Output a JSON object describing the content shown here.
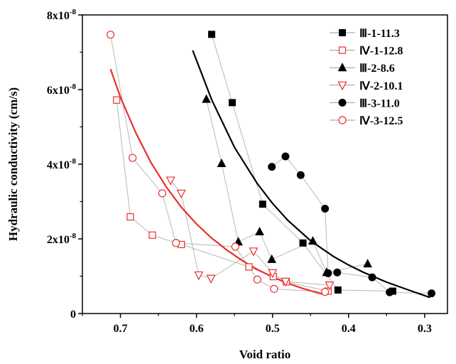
{
  "chart_data": {
    "type": "scatter",
    "xlabel": "Void ratio",
    "ylabel": "Hydraulic conductivity (cm/s)",
    "xlim": [
      0.75,
      0.27
    ],
    "x_reversed": true,
    "ylim": [
      0,
      8e-08
    ],
    "x_ticks": [
      {
        "value": 0.7,
        "label": "0.7"
      },
      {
        "value": 0.6,
        "label": "0.6"
      },
      {
        "value": 0.5,
        "label": "0.5"
      },
      {
        "value": 0.4,
        "label": "0.4"
      },
      {
        "value": 0.3,
        "label": "0.3"
      }
    ],
    "y_ticks": [
      {
        "value": 0,
        "base": "0",
        "exp": ""
      },
      {
        "value": 2e-08,
        "base": "2x10",
        "exp": "-8"
      },
      {
        "value": 4e-08,
        "base": "4x10",
        "exp": "-8"
      },
      {
        "value": 6e-08,
        "base": "6x10",
        "exp": "-8"
      },
      {
        "value": 8e-08,
        "base": "8x10",
        "exp": "-8"
      }
    ],
    "legend_position": "top-right",
    "grid": false,
    "series": [
      {
        "name": "Ⅲ-1-11.3",
        "marker": "square",
        "fill": true,
        "color": "#000000",
        "x": [
          0.58,
          0.553,
          0.513,
          0.46,
          0.414,
          0.342
        ],
        "y": [
          7.48e-08,
          5.65e-08,
          2.93e-08,
          1.89e-08,
          6.3e-09,
          6e-09
        ]
      },
      {
        "name": "Ⅳ-1-12.8",
        "marker": "square",
        "fill": false,
        "color": "#e8302c",
        "x": [
          0.705,
          0.687,
          0.658,
          0.62,
          0.531,
          0.499,
          0.482,
          0.427
        ],
        "y": [
          5.72e-08,
          2.59e-08,
          2.1e-08,
          1.85e-08,
          1.25e-08,
          9.9e-09,
          8.5e-09,
          6e-09
        ]
      },
      {
        "name": "Ⅲ-2-8.6",
        "marker": "triangle-up",
        "fill": true,
        "color": "#000000",
        "x": [
          0.587,
          0.567,
          0.545,
          0.517,
          0.501,
          0.447,
          0.429,
          0.375
        ],
        "y": [
          5.74e-08,
          4.02e-08,
          1.92e-08,
          2.19e-08,
          1.45e-08,
          1.94e-08,
          1.1e-08,
          1.33e-08
        ]
      },
      {
        "name": "Ⅳ-2-10.1",
        "marker": "triangle-down",
        "fill": false,
        "color": "#e8302c",
        "x": [
          0.634,
          0.62,
          0.597,
          0.581,
          0.525,
          0.5,
          0.483,
          0.425
        ],
        "y": [
          3.57e-08,
          3.22e-08,
          1.03e-08,
          9.4e-09,
          1.67e-08,
          1.09e-08,
          8.6e-09,
          7.6e-09
        ]
      },
      {
        "name": "Ⅲ-3-11.0",
        "marker": "circle",
        "fill": true,
        "color": "#000000",
        "x": [
          0.501,
          0.483,
          0.463,
          0.431,
          0.427,
          0.415,
          0.369,
          0.346,
          0.291
        ],
        "y": [
          3.93e-08,
          4.21e-08,
          3.71e-08,
          2.81e-08,
          1.08e-08,
          1.1e-08,
          9.7e-09,
          5.7e-09,
          5.4e-09
        ]
      },
      {
        "name": "Ⅳ-3-12.5",
        "marker": "circle",
        "fill": false,
        "color": "#e8302c",
        "x": [
          0.713,
          0.684,
          0.645,
          0.627,
          0.549,
          0.52,
          0.498,
          0.431
        ],
        "y": [
          7.47e-08,
          4.17e-08,
          3.22e-08,
          1.89e-08,
          1.79e-08,
          9.1e-09,
          6.6e-09,
          5.8e-09
        ]
      }
    ],
    "fit_curves": [
      {
        "color": "#000000",
        "x": [
          0.605,
          0.58,
          0.55,
          0.52,
          0.5,
          0.48,
          0.45,
          0.42,
          0.4,
          0.38,
          0.35,
          0.32,
          0.293
        ],
        "y": [
          7.05e-08,
          5.73e-08,
          4.45e-08,
          3.48e-08,
          2.95e-08,
          2.5e-08,
          1.95e-08,
          1.53e-08,
          1.3e-08,
          1.1e-08,
          8.4e-09,
          6.2e-09,
          4.3e-09
        ]
      },
      {
        "color": "#e8302c",
        "x": [
          0.713,
          0.7,
          0.68,
          0.66,
          0.64,
          0.62,
          0.6,
          0.58,
          0.56,
          0.54,
          0.52,
          0.5,
          0.48,
          0.46,
          0.44,
          0.43
        ],
        "y": [
          6.55e-08,
          5.8e-08,
          4.85e-08,
          4.05e-08,
          3.4e-08,
          2.85e-08,
          2.4e-08,
          2.02e-08,
          1.7e-08,
          1.42e-08,
          1.18e-08,
          9.8e-09,
          8.1e-09,
          6.7e-09,
          5.5e-09,
          5e-09
        ]
      }
    ]
  }
}
